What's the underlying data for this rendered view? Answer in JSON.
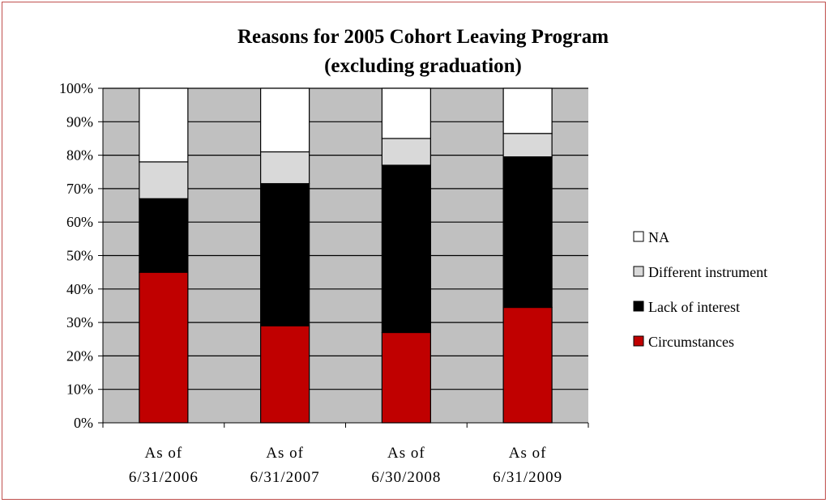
{
  "chart_data": {
    "type": "bar",
    "stacked": true,
    "percent": true,
    "title": "Reasons for 2005 Cohort Leaving Program",
    "subtitle": "(excluding graduation)",
    "categories": [
      [
        "As of",
        "6/31/2006"
      ],
      [
        "As of",
        "6/31/2007"
      ],
      [
        "As of",
        "6/30/2008"
      ],
      [
        "As of",
        "6/31/2009"
      ]
    ],
    "series": [
      {
        "name": "Circumstances",
        "color": "#c00000",
        "values": [
          45,
          29,
          27,
          34.5
        ]
      },
      {
        "name": "Lack of interest",
        "color": "#000000",
        "values": [
          22,
          42.5,
          50,
          45
        ]
      },
      {
        "name": "Different instrument",
        "color": "#d9d9d9",
        "values": [
          11,
          9.5,
          8,
          7
        ]
      },
      {
        "name": "NA",
        "color": "#ffffff",
        "values": [
          22,
          19,
          15,
          13.5
        ]
      }
    ],
    "yticks": [
      "0%",
      "10%",
      "20%",
      "30%",
      "40%",
      "50%",
      "60%",
      "70%",
      "80%",
      "90%",
      "100%"
    ],
    "ylim": [
      0,
      100
    ],
    "grid": true,
    "plot_background": "#c0c0c0",
    "legend_position": "right",
    "legend_order": [
      "NA",
      "Different instrument",
      "Lack of interest",
      "Circumstances"
    ]
  }
}
